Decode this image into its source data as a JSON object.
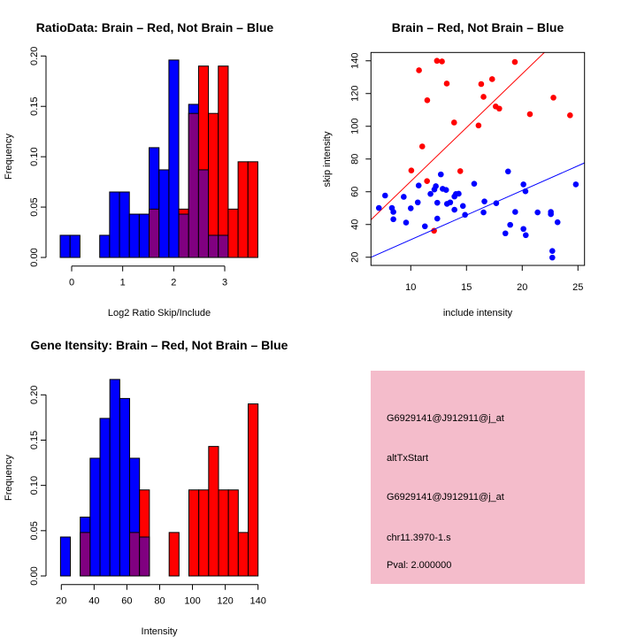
{
  "colors": {
    "brain": "#ff0000",
    "not_brain": "#0000ff",
    "overlap": "#800080",
    "panel_bg": "#f4bccb",
    "pval": "#8b0000"
  },
  "chart_data": [
    {
      "type": "bar",
      "title": "RatioData: Brain – Red, Not Brain – Blue",
      "xlabel": "Log2 Ratio Skip/Include",
      "ylabel": "Frequency",
      "xticks": [
        0,
        1,
        2,
        3
      ],
      "yticks": [
        "0.00",
        "0.05",
        "0.10",
        "0.15",
        "0.20"
      ],
      "ylim": [
        0,
        0.2
      ],
      "bin_start": -0.225,
      "bin_width": 0.1937,
      "series": [
        {
          "name": "Not Brain",
          "color": "#0000ff",
          "values": [
            0.022,
            0.022,
            0,
            0,
            0.022,
            0.065,
            0.065,
            0.043,
            0.043,
            0.109,
            0.087,
            0.196,
            0.043,
            0.152,
            0.087,
            0.022,
            0.022,
            0,
            0,
            0
          ]
        },
        {
          "name": "Brain",
          "color": "#ff0000",
          "values": [
            0,
            0,
            0,
            0,
            0,
            0,
            0,
            0,
            0,
            0.048,
            0,
            0,
            0.048,
            0.143,
            0.19,
            0.143,
            0.19,
            0.048,
            0.095,
            0.095
          ]
        }
      ]
    },
    {
      "type": "scatter",
      "title": "Brain – Red, Not Brain – Blue",
      "xlabel": "include intensity",
      "ylabel": "skip intensity",
      "xlim": [
        6.43,
        25.59
      ],
      "ylim": [
        15.0,
        145.1
      ],
      "xticks": [
        10,
        15,
        20,
        25
      ],
      "yticks": [
        20,
        40,
        60,
        80,
        100,
        120,
        140
      ],
      "series": [
        {
          "name": "Brain",
          "color": "#ff0000",
          "fit": {
            "slope": 6.57,
            "intercept": 0.65
          },
          "points": [
            [
              12.35,
              140
            ],
            [
              12.8,
              139.6
            ],
            [
              10.74,
              134.2
            ],
            [
              13.23,
              126.1
            ],
            [
              11.48,
              115.9
            ],
            [
              16.32,
              125.8
            ],
            [
              17.3,
              128.8
            ],
            [
              16.53,
              118.0
            ],
            [
              19.34,
              139.3
            ],
            [
              17.62,
              112.1
            ],
            [
              17.94,
              110.8
            ],
            [
              13.89,
              102.3
            ],
            [
              16.08,
              100.5
            ],
            [
              22.8,
              117.5
            ],
            [
              20.69,
              107.4
            ],
            [
              24.29,
              106.7
            ],
            [
              11.03,
              87.7
            ],
            [
              10.05,
              73.0
            ],
            [
              14.44,
              72.6
            ],
            [
              11.46,
              66.5
            ],
            [
              12.09,
              36.2
            ]
          ]
        },
        {
          "name": "Not Brain",
          "color": "#0000ff",
          "fit": {
            "slope": 3.01,
            "intercept": 0.6
          },
          "points": [
            [
              7.14,
              50.1
            ],
            [
              7.7,
              57.7
            ],
            [
              8.31,
              50.1
            ],
            [
              8.44,
              47.7
            ],
            [
              8.44,
              43.2
            ],
            [
              9.37,
              56.9
            ],
            [
              9.58,
              41.2
            ],
            [
              10.0,
              49.9
            ],
            [
              10.63,
              53.5
            ],
            [
              10.71,
              63.8
            ],
            [
              11.27,
              38.9
            ],
            [
              11.77,
              58.7
            ],
            [
              12.12,
              61.4
            ],
            [
              12.25,
              63.4
            ],
            [
              12.38,
              53.3
            ],
            [
              12.38,
              43.6
            ],
            [
              12.7,
              70.6
            ],
            [
              12.86,
              61.8
            ],
            [
              13.17,
              61.1
            ],
            [
              13.25,
              52.6
            ],
            [
              13.54,
              53.5
            ],
            [
              13.92,
              57.1
            ],
            [
              14.05,
              58.6
            ],
            [
              14.3,
              58.8
            ],
            [
              13.92,
              49.0
            ],
            [
              14.68,
              51.3
            ],
            [
              14.87,
              45.9
            ],
            [
              15.69,
              64.9
            ],
            [
              16.53,
              47.4
            ],
            [
              16.61,
              54.1
            ],
            [
              17.67,
              53.0
            ],
            [
              18.49,
              34.6
            ],
            [
              18.73,
              72.4
            ],
            [
              18.92,
              39.8
            ],
            [
              19.37,
              47.7
            ],
            [
              20.11,
              64.5
            ],
            [
              20.29,
              60.3
            ],
            [
              20.11,
              37.3
            ],
            [
              20.32,
              33.5
            ],
            [
              21.38,
              47.4
            ],
            [
              22.57,
              47.7
            ],
            [
              22.57,
              46.3
            ],
            [
              22.7,
              23.8
            ],
            [
              22.7,
              19.8
            ],
            [
              23.17,
              41.4
            ],
            [
              24.81,
              64.5
            ]
          ]
        }
      ]
    },
    {
      "type": "bar",
      "title": "Gene Itensity: Brain – Red, Not Brain – Blue",
      "xlabel": "Intensity",
      "ylabel": "Frequency",
      "xticks": [
        20,
        40,
        60,
        80,
        100,
        120,
        140
      ],
      "yticks": [
        "0.00",
        "0.05",
        "0.10",
        "0.15",
        "0.20"
      ],
      "ylim": [
        0,
        0.2
      ],
      "bin_start": 19.5,
      "bin_width": 6.025,
      "series": [
        {
          "name": "Not Brain",
          "color": "#0000ff",
          "values": [
            0.043,
            0,
            0.065,
            0.13,
            0.174,
            0.217,
            0.196,
            0.13,
            0.043,
            0,
            0,
            0,
            0,
            0,
            0,
            0,
            0,
            0,
            0,
            0
          ]
        },
        {
          "name": "Brain",
          "color": "#ff0000",
          "values": [
            0,
            0,
            0.048,
            0,
            0,
            0,
            0,
            0.048,
            0.095,
            0,
            0,
            0.048,
            0,
            0.095,
            0.095,
            0.143,
            0.095,
            0.095,
            0.048,
            0.19
          ]
        }
      ]
    }
  ],
  "info_panel": {
    "lines": [
      "G6929141@J912911@j_at",
      "altTxStart",
      "G6929141@J912911@j_at",
      "chr11.3970-1.s"
    ],
    "pval": "Pval: 2.000000"
  }
}
